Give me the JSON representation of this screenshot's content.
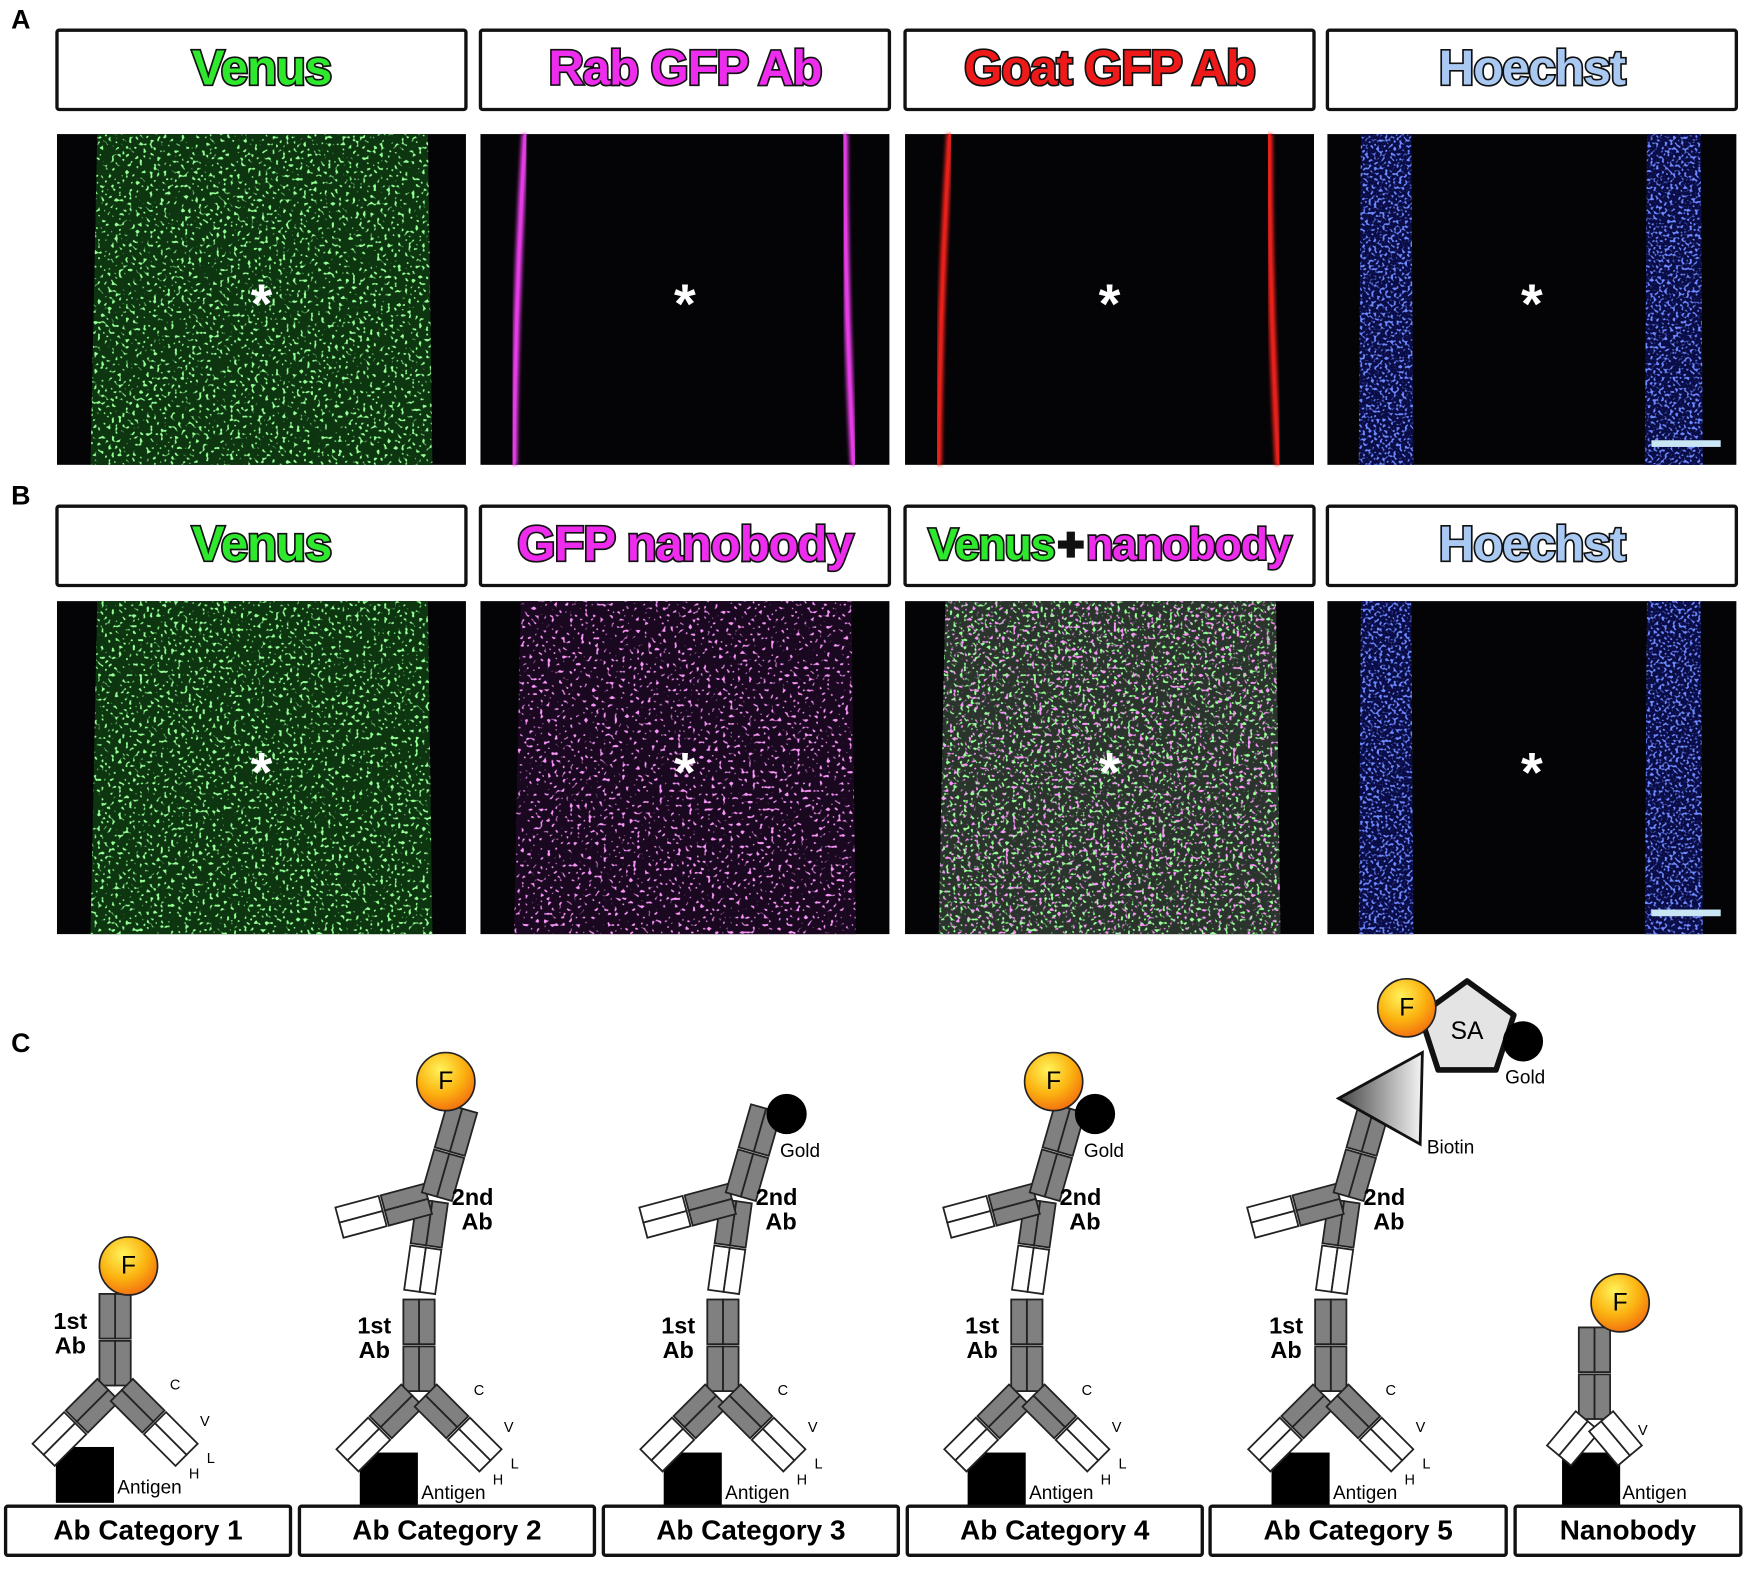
{
  "panels": [
    {
      "label": "A",
      "headers": [
        [
          {
            "text": "Venus",
            "color": "#2ee82e"
          }
        ],
        [
          {
            "text": "Rab GFP Ab",
            "color": "#ee2cee"
          }
        ],
        [
          {
            "text": "Goat GFP Ab",
            "color": "#ee1a1a"
          }
        ],
        [
          {
            "text": "Hoechst",
            "color": "#a9c9f2"
          }
        ]
      ]
    },
    {
      "label": "B",
      "headers": [
        [
          {
            "text": "Venus",
            "color": "#2ee82e"
          }
        ],
        [
          {
            "text": "GFP nanobody",
            "color": "#ee2cee"
          }
        ],
        [
          {
            "text": "Venus",
            "color": "#2ee82e"
          },
          {
            "text": "+",
            "color": "#111111"
          },
          {
            "text": "nanobody",
            "color": "#ee2cee"
          }
        ],
        [
          {
            "text": "Hoechst",
            "color": "#a9c9f2"
          }
        ]
      ]
    }
  ],
  "asterisk": "*",
  "panel_c": {
    "label": "C",
    "items": [
      {
        "name": "Ab Category 1",
        "first": [
          "1st",
          "Ab"
        ],
        "fluor": "F",
        "antigen": "Antigen",
        "domains": [
          "C",
          "V",
          "H",
          "L"
        ]
      },
      {
        "name": "Ab Category 2",
        "first": [
          "1st",
          "Ab"
        ],
        "second": [
          "2nd",
          "Ab"
        ],
        "fluor": "F",
        "antigen": "Antigen",
        "domains": [
          "C",
          "V",
          "H",
          "L"
        ]
      },
      {
        "name": "Ab Category 3",
        "first": [
          "1st",
          "Ab"
        ],
        "second": [
          "2nd",
          "Ab"
        ],
        "gold": "Gold",
        "antigen": "Antigen",
        "domains": [
          "C",
          "V",
          "H",
          "L"
        ]
      },
      {
        "name": "Ab Category 4",
        "first": [
          "1st",
          "Ab"
        ],
        "second": [
          "2nd",
          "Ab"
        ],
        "fluor": "F",
        "gold": "Gold",
        "antigen": "Antigen",
        "domains": [
          "C",
          "V",
          "H",
          "L"
        ]
      },
      {
        "name": "Ab Category 5",
        "first": [
          "1st",
          "Ab"
        ],
        "second": [
          "2nd",
          "Ab"
        ],
        "fluor": "F",
        "gold": "Gold",
        "streptavidin": "SA",
        "biotin": "Biotin",
        "antigen": "Antigen",
        "domains": [
          "C",
          "V",
          "H",
          "L"
        ]
      },
      {
        "name": "Nanobody",
        "fluor": "F",
        "antigen": "Antigen",
        "domains": [
          "V"
        ]
      }
    ]
  }
}
